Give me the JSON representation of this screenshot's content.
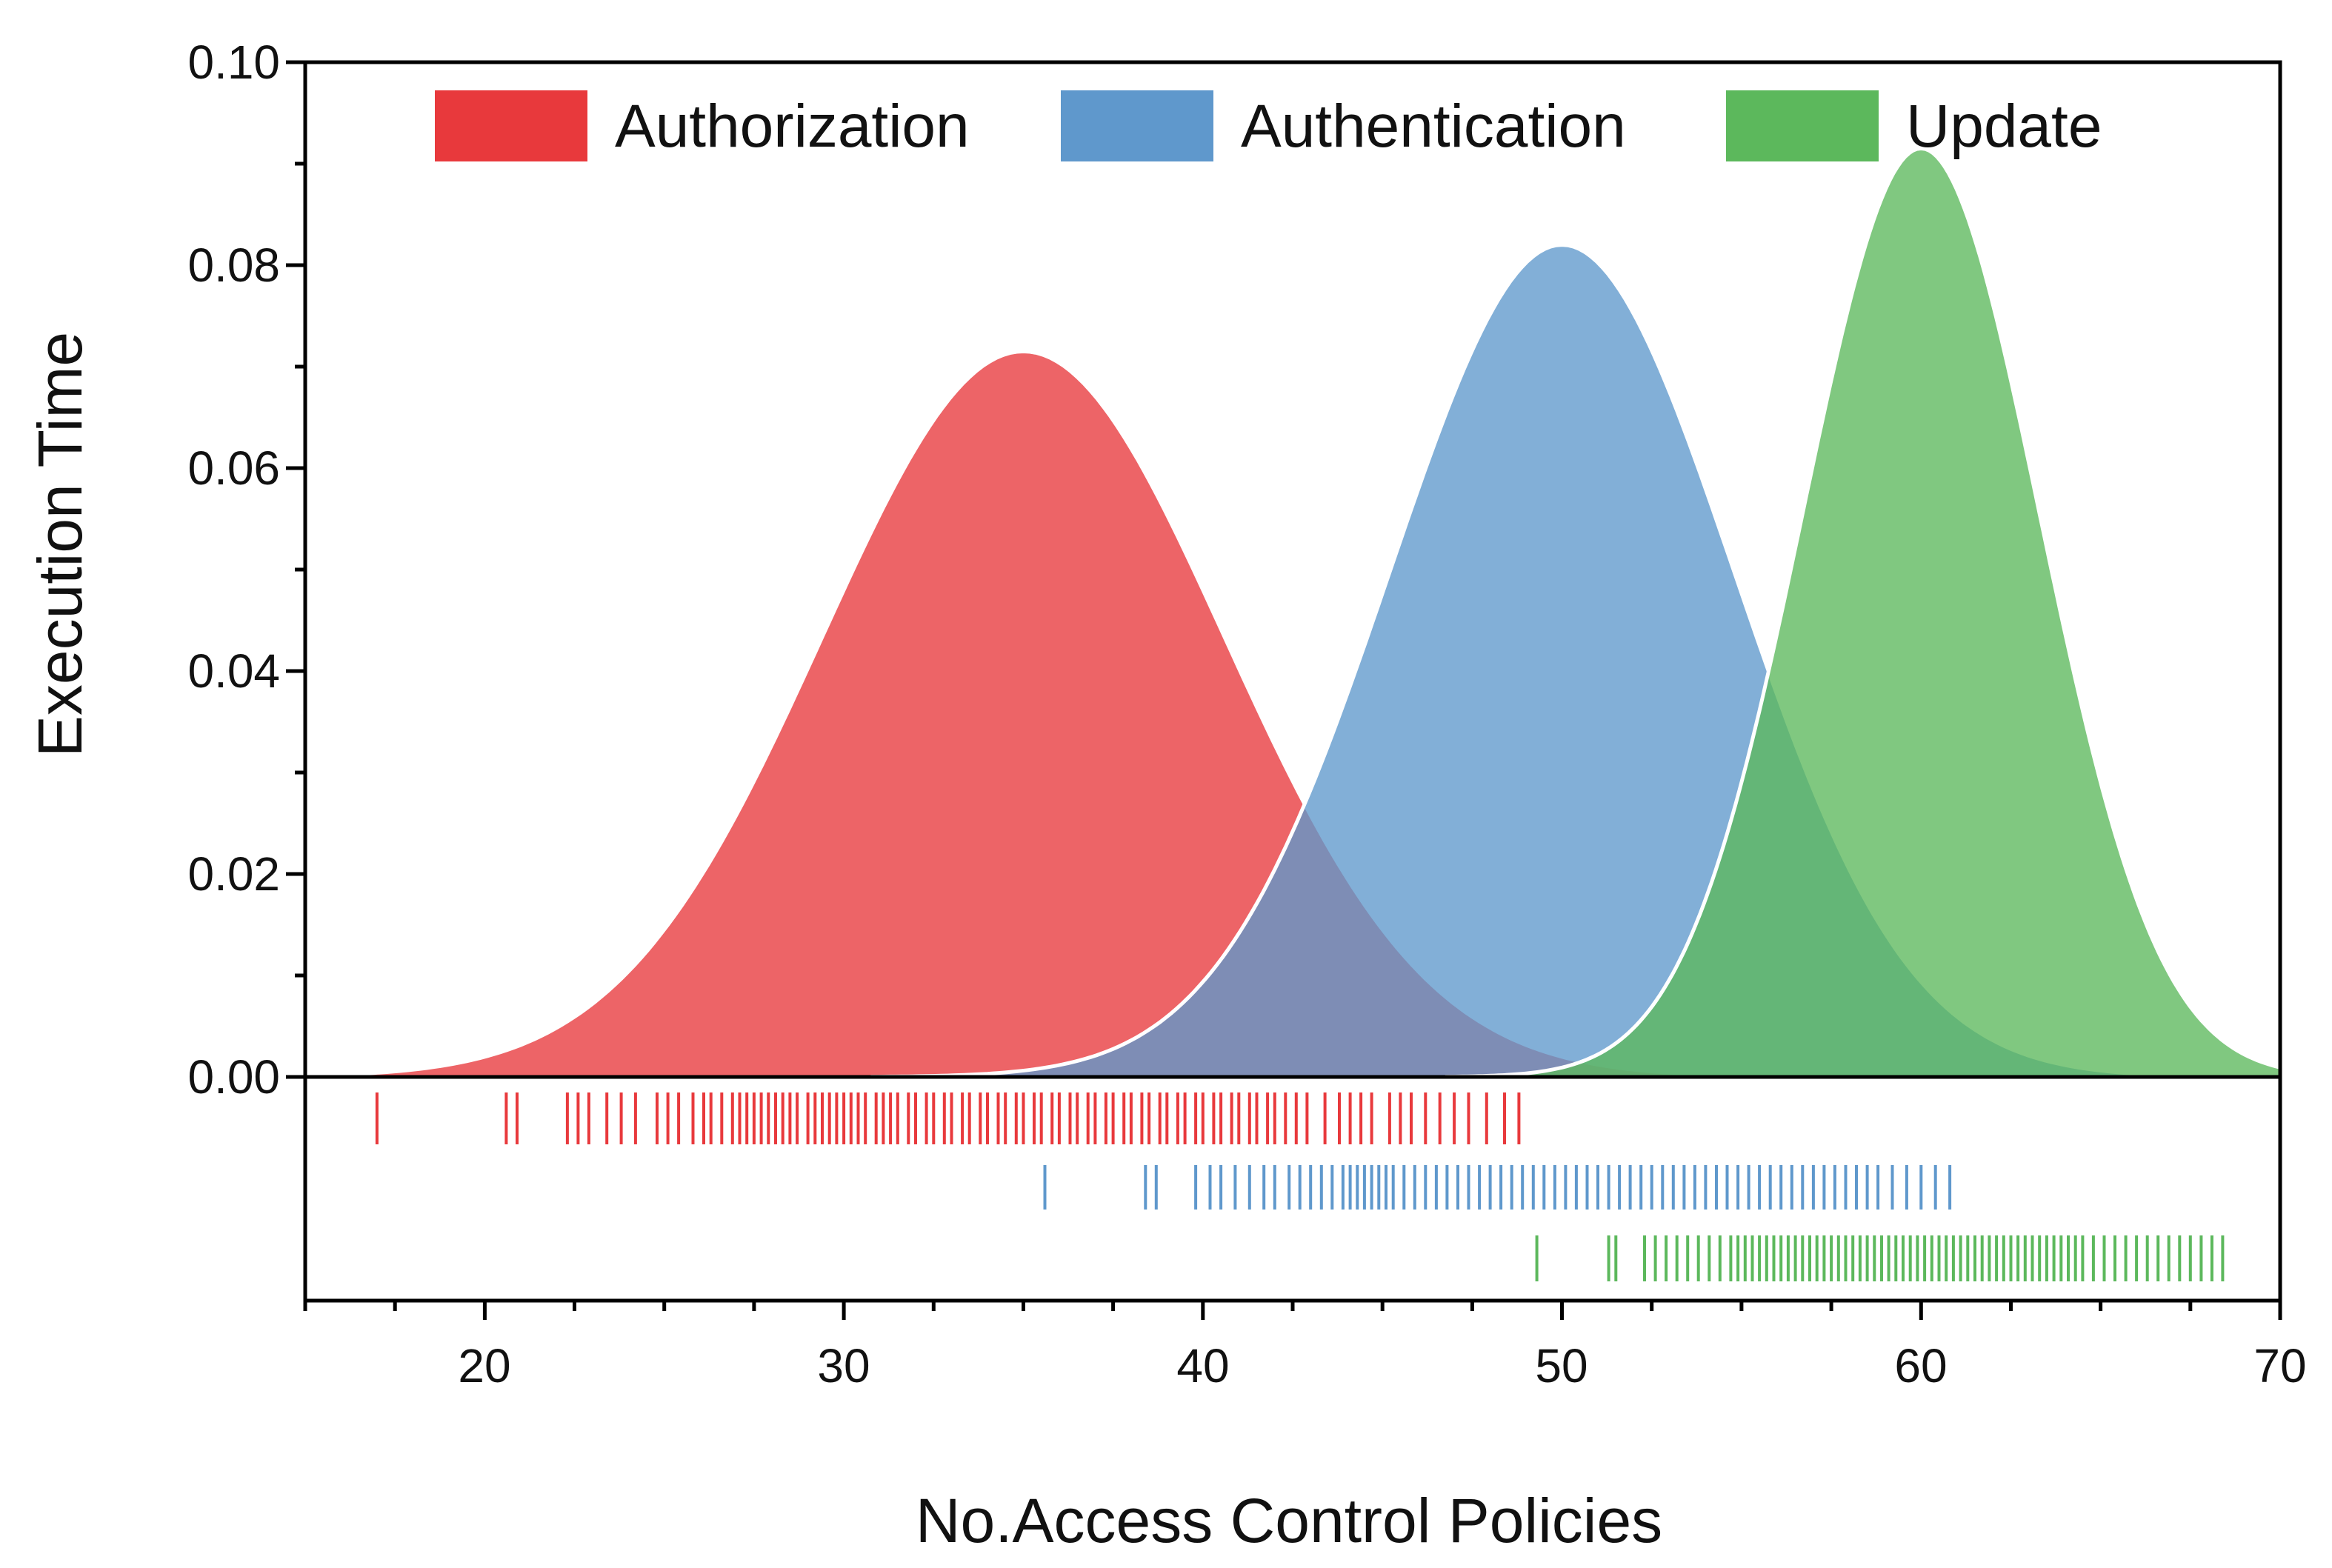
{
  "chart_data": {
    "type": "area",
    "title": "",
    "xlabel": "No.Access Control Policies",
    "ylabel": "Execution Time",
    "xlim": [
      15,
      70
    ],
    "ylim": [
      0,
      0.1
    ],
    "xticks": [
      "20",
      "30",
      "40",
      "50",
      "60",
      "70"
    ],
    "yticks": [
      "0.00",
      "0.02",
      "0.04",
      "0.06",
      "0.08",
      "0.10"
    ],
    "x_minor_tick_step": 2.5,
    "y_minor_tick_step": 0.01,
    "grid": false,
    "legend_position": "top",
    "series": [
      {
        "name": "Authorization",
        "color": "#e8393c",
        "curve": "normal",
        "mean": 35,
        "sd": 5.6,
        "peak": 0.0715,
        "rug": [
          17.0,
          20.6,
          20.9,
          22.3,
          22.6,
          22.9,
          23.4,
          23.8,
          24.2,
          24.8,
          25.1,
          25.4,
          25.8,
          26.1,
          26.3,
          26.6,
          26.9,
          27.1,
          27.3,
          27.5,
          27.7,
          27.9,
          28.1,
          28.3,
          28.5,
          28.7,
          29.0,
          29.2,
          29.4,
          29.6,
          29.8,
          30.0,
          30.2,
          30.4,
          30.6,
          30.9,
          31.1,
          31.3,
          31.5,
          31.8,
          32.0,
          32.3,
          32.5,
          32.8,
          33.0,
          33.3,
          33.5,
          33.8,
          34.0,
          34.3,
          34.5,
          34.8,
          35.0,
          35.3,
          35.5,
          35.8,
          36.0,
          36.3,
          36.5,
          36.8,
          37.0,
          37.3,
          37.5,
          37.8,
          38.0,
          38.3,
          38.5,
          38.8,
          39.0,
          39.3,
          39.5,
          39.8,
          40.0,
          40.3,
          40.5,
          40.8,
          41.0,
          41.3,
          41.5,
          41.8,
          42.0,
          42.3,
          42.6,
          42.9,
          43.4,
          43.8,
          44.1,
          44.4,
          44.7,
          45.2,
          45.5,
          45.8,
          46.2,
          46.6,
          47.0,
          47.4,
          47.9,
          48.4,
          48.8
        ]
      },
      {
        "name": "Authentication",
        "color": "#5f98cc",
        "curve": "normal",
        "mean": 50,
        "sd": 4.8,
        "peak": 0.082,
        "rug": [
          35.6,
          38.4,
          38.7,
          39.8,
          40.2,
          40.5,
          40.9,
          41.3,
          41.7,
          42.0,
          42.4,
          42.7,
          43.0,
          43.3,
          43.6,
          43.9,
          44.1,
          44.3,
          44.5,
          44.7,
          44.9,
          45.1,
          45.3,
          45.6,
          45.9,
          46.2,
          46.5,
          46.8,
          47.1,
          47.4,
          47.7,
          48.0,
          48.3,
          48.6,
          48.9,
          49.2,
          49.5,
          49.8,
          50.1,
          50.4,
          50.7,
          51.0,
          51.3,
          51.6,
          51.9,
          52.2,
          52.5,
          52.8,
          53.1,
          53.4,
          53.7,
          54.0,
          54.3,
          54.6,
          54.9,
          55.2,
          55.5,
          55.8,
          56.1,
          56.4,
          56.7,
          57.0,
          57.3,
          57.6,
          57.9,
          58.2,
          58.5,
          58.8,
          59.2,
          59.6,
          60.0,
          60.4,
          60.8
        ]
      },
      {
        "name": "Update",
        "color": "#5cb85c",
        "curve": "normal",
        "mean": 60,
        "sd": 3.3,
        "peak": 0.0915,
        "rug": [
          49.3,
          51.3,
          51.5,
          52.3,
          52.6,
          52.9,
          53.2,
          53.5,
          53.8,
          54.1,
          54.4,
          54.7,
          54.9,
          55.1,
          55.3,
          55.5,
          55.7,
          55.9,
          56.1,
          56.3,
          56.5,
          56.7,
          56.9,
          57.1,
          57.3,
          57.5,
          57.7,
          57.9,
          58.1,
          58.3,
          58.5,
          58.7,
          58.9,
          59.1,
          59.3,
          59.5,
          59.7,
          59.9,
          60.1,
          60.3,
          60.5,
          60.7,
          60.9,
          61.1,
          61.3,
          61.5,
          61.7,
          61.9,
          62.1,
          62.3,
          62.5,
          62.7,
          62.9,
          63.1,
          63.3,
          63.5,
          63.7,
          63.9,
          64.1,
          64.3,
          64.5,
          64.8,
          65.1,
          65.4,
          65.7,
          66.0,
          66.3,
          66.6,
          66.9,
          67.2,
          67.5,
          67.8,
          68.1,
          68.4
        ]
      }
    ]
  }
}
